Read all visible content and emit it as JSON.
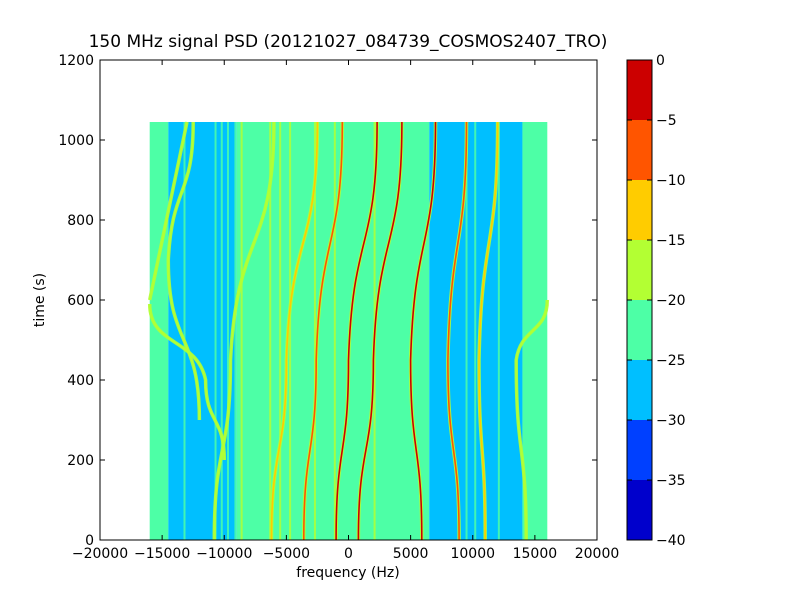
{
  "chart_data": {
    "type": "heatmap",
    "title": "150 MHz signal PSD (20121027_084739_COSMOS2407_TRO)",
    "xlabel": "frequency (Hz)",
    "ylabel": "time (s)",
    "xlim": [
      -20000,
      20000
    ],
    "ylim": [
      0,
      1200
    ],
    "x_ticks": [
      -20000,
      -15000,
      -10000,
      -5000,
      0,
      5000,
      10000,
      15000,
      20000
    ],
    "x_tick_labels": [
      "−20000",
      "−15000",
      "−10000",
      "−5000",
      "0",
      "5000",
      "10000",
      "15000",
      "20000"
    ],
    "y_ticks": [
      0,
      200,
      400,
      600,
      800,
      1000,
      1200
    ],
    "y_tick_labels": [
      "0",
      "200",
      "400",
      "600",
      "800",
      "1000",
      "1200"
    ],
    "data_extent": {
      "freq_min": -16000,
      "freq_max": 16000,
      "time_min": 0,
      "time_max": 1045
    },
    "grid": false,
    "colorbar": {
      "levels": [
        -40,
        -35,
        -30,
        -25,
        -20,
        -15,
        -10,
        -5,
        0
      ],
      "tick_labels": [
        "−40",
        "−35",
        "−30",
        "−25",
        "−20",
        "−15",
        "−10",
        "−5",
        "0"
      ],
      "colors": [
        "#0000cc",
        "#0040ff",
        "#00bfff",
        "#4dffa6",
        "#b3ff33",
        "#ffcc00",
        "#ff5500",
        "#cc0000"
      ]
    },
    "background_band_levels": [
      {
        "freq_from": -16000,
        "freq_to": -14500,
        "level_band": "-25 to -20"
      },
      {
        "freq_from": -14500,
        "freq_to": -9000,
        "level_band": "-30 to -25"
      },
      {
        "freq_from": -9000,
        "freq_to": 6500,
        "level_band": "-25 to -20"
      },
      {
        "freq_from": 6500,
        "freq_to": 14000,
        "level_band": "-30 to -25"
      },
      {
        "freq_from": 14000,
        "freq_to": 16000,
        "level_band": "-25 to -20"
      }
    ],
    "vertical_lines_hz": [
      -13200,
      -10700,
      -10200,
      -9700,
      -9100,
      -8600,
      -6300,
      -5500,
      -4700,
      -2700,
      -1100,
      2100,
      9500,
      10200,
      12100
    ],
    "doppler_traces": [
      {
        "freq_at_t": [
          [
            -6000,
            1045
          ],
          [
            -9500,
            450
          ],
          [
            -10800,
            0
          ]
        ],
        "peak_level": "-20 to -15"
      },
      {
        "freq_at_t": [
          [
            -2500,
            1045
          ],
          [
            -5000,
            450
          ],
          [
            -6200,
            0
          ]
        ],
        "peak_level": "-15 to -10"
      },
      {
        "freq_at_t": [
          [
            -500,
            1045
          ],
          [
            -2600,
            450
          ],
          [
            -3600,
            0
          ]
        ],
        "peak_level": "-10 to -5"
      },
      {
        "freq_at_t": [
          [
            2300,
            1045
          ],
          [
            0,
            450
          ],
          [
            -1000,
            0
          ]
        ],
        "peak_level": "-5 to 0"
      },
      {
        "freq_at_t": [
          [
            4300,
            1045
          ],
          [
            2000,
            450
          ],
          [
            800,
            0
          ]
        ],
        "peak_level": "-5 to 0"
      },
      {
        "freq_at_t": [
          [
            7000,
            1045
          ],
          [
            5000,
            450
          ],
          [
            5900,
            0
          ]
        ],
        "peak_level": "-5 to 0"
      },
      {
        "freq_at_t": [
          [
            9500,
            1045
          ],
          [
            8000,
            450
          ],
          [
            8900,
            0
          ]
        ],
        "peak_level": "-10 to -5"
      },
      {
        "freq_at_t": [
          [
            12000,
            1045
          ],
          [
            10500,
            450
          ],
          [
            11000,
            0
          ]
        ],
        "peak_level": "-15 to -10"
      },
      {
        "freq_at_t": [
          [
            16000,
            600
          ],
          [
            13500,
            450
          ],
          [
            14300,
            0
          ]
        ],
        "peak_level": "-20 to -15"
      },
      {
        "freq_at_t": [
          [
            -13000,
            1045
          ],
          [
            -16000,
            600
          ]
        ],
        "peak_level": "-20 to -15"
      },
      {
        "freq_at_t": [
          [
            -16000,
            590
          ],
          [
            -11500,
            400
          ],
          [
            -10000,
            200
          ]
        ],
        "peak_level": "-20 to -15"
      },
      {
        "freq_at_t": [
          [
            -12500,
            1045
          ],
          [
            -14500,
            700
          ],
          [
            -12000,
            300
          ]
        ],
        "peak_level": "-20 to -15"
      }
    ]
  }
}
